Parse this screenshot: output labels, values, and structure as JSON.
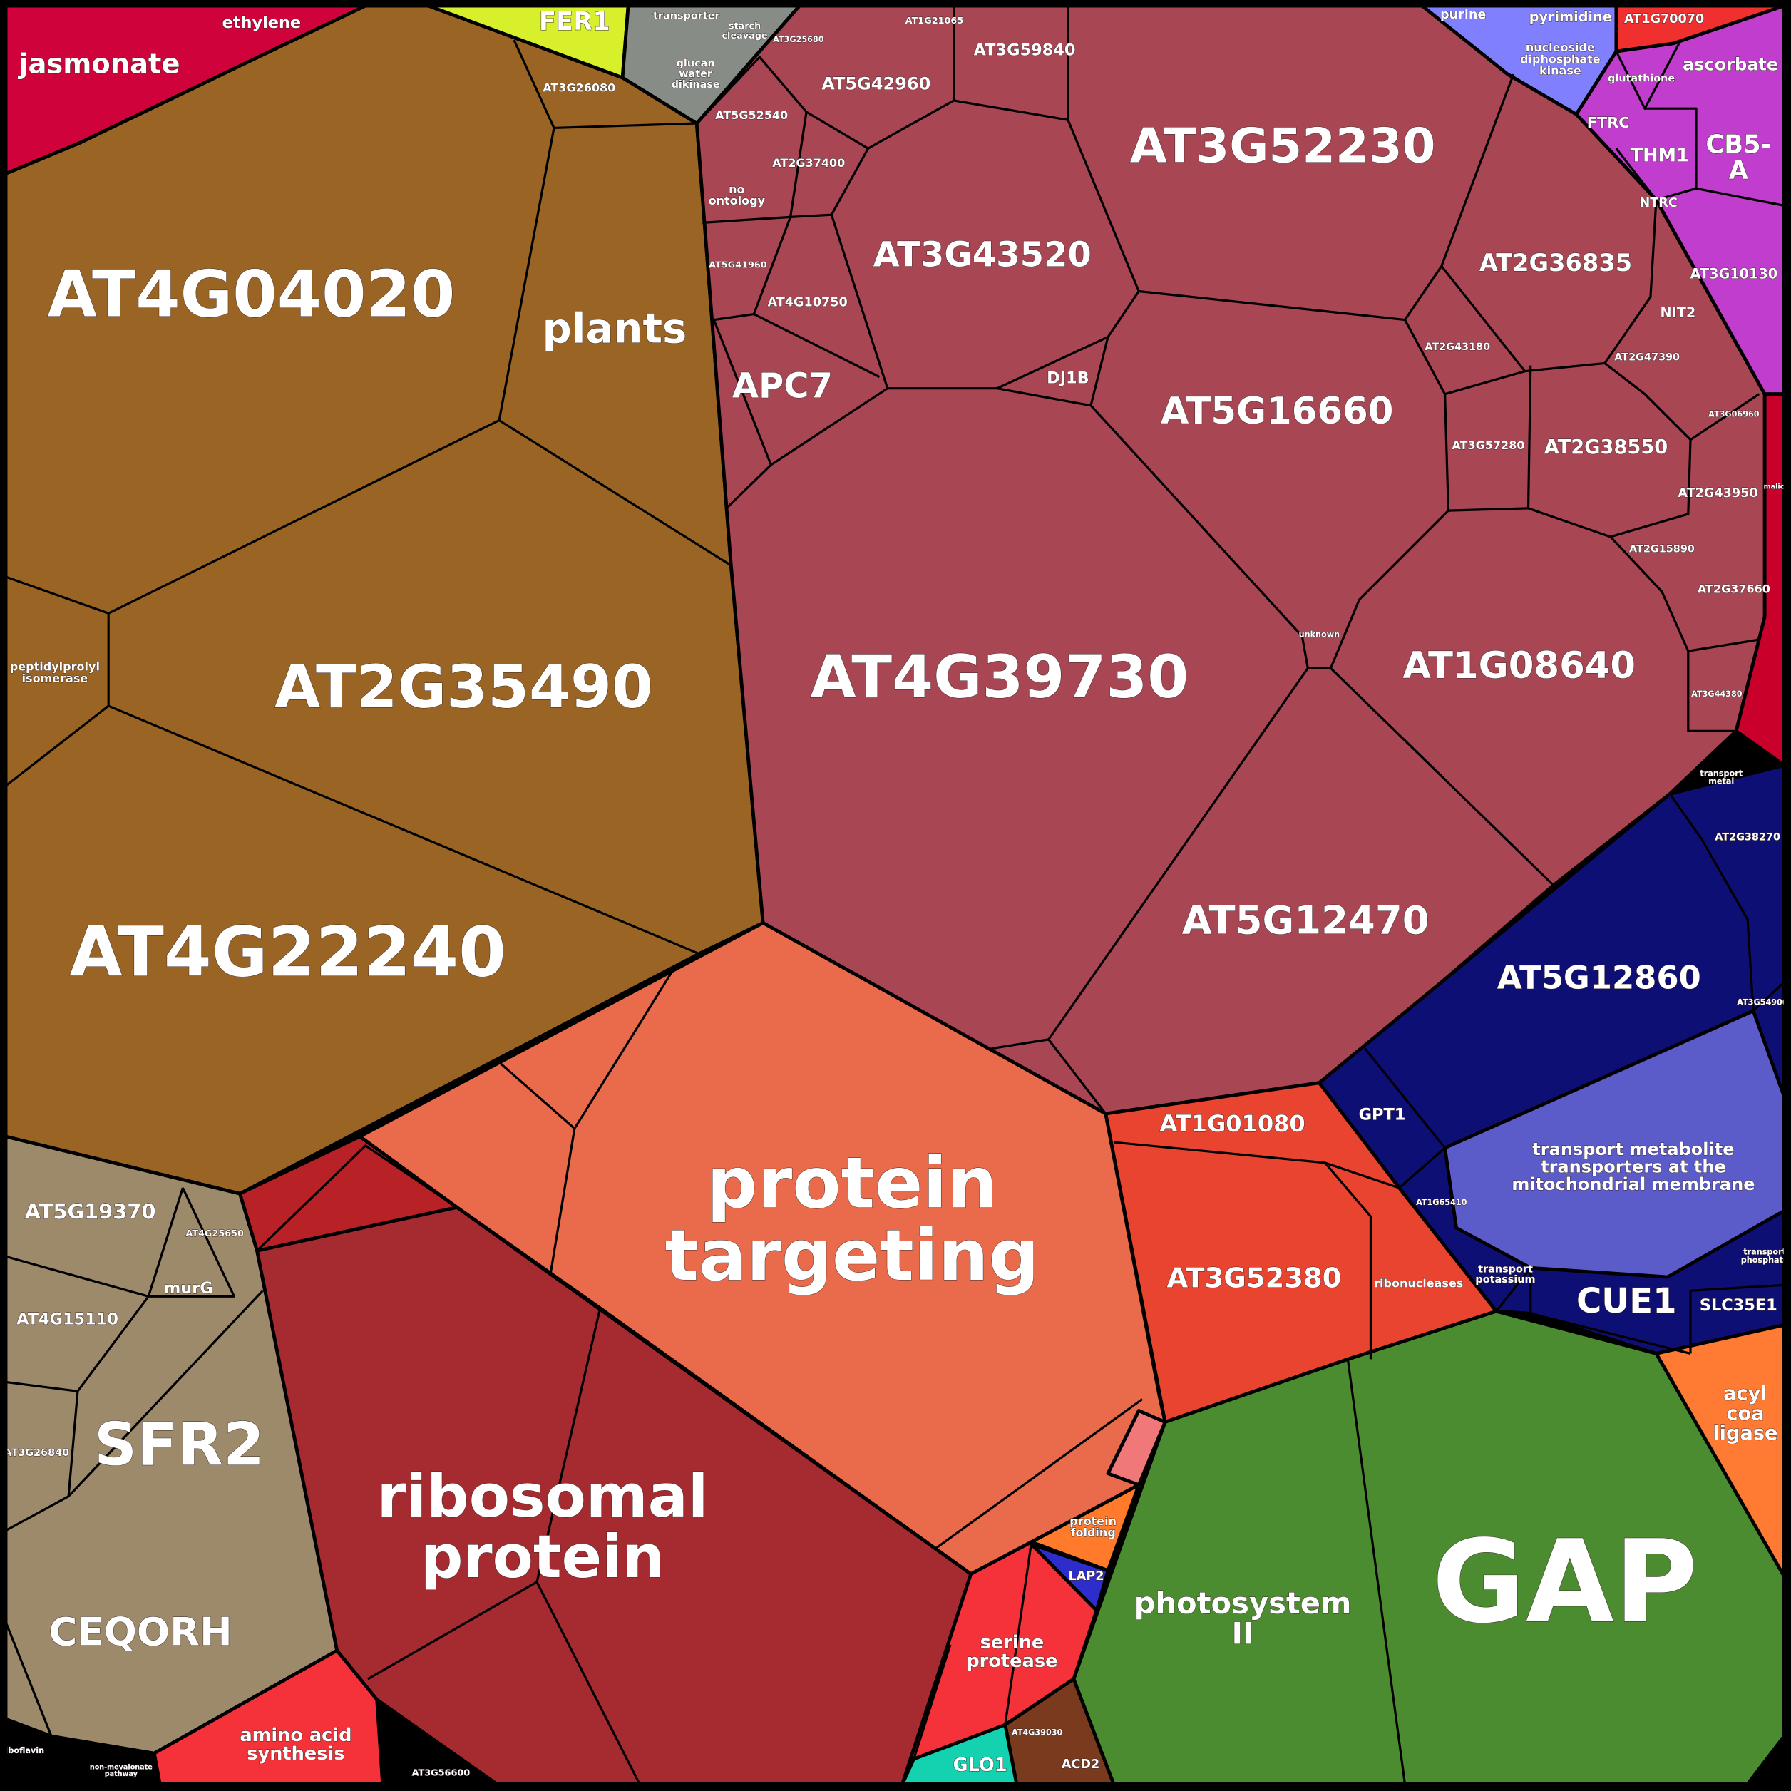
{
  "cells": [
    {
      "label": [
        "jasmonate"
      ]
    },
    {
      "label": [
        "ethylene"
      ]
    },
    {
      "label": [
        "FER1"
      ]
    },
    {
      "label": [
        "transporter"
      ]
    },
    {
      "label": [
        "starch",
        "cleavage"
      ]
    },
    {
      "label": [
        "glucan",
        "water",
        "dikinase"
      ]
    },
    {
      "label": [
        "AT3G26080"
      ]
    },
    {
      "label": [
        "AT3G25680"
      ]
    },
    {
      "label": [
        "AT1G21065"
      ]
    },
    {
      "label": [
        "AT3G59840"
      ]
    },
    {
      "label": [
        "AT5G42960"
      ]
    },
    {
      "label": [
        "AT5G52540"
      ]
    },
    {
      "label": [
        "AT2G37400"
      ]
    },
    {
      "label": [
        "no",
        "ontology"
      ]
    },
    {
      "label": [
        "AT5G41960"
      ]
    },
    {
      "label": [
        "AT4G10750"
      ]
    },
    {
      "label": [
        "AT4G04020"
      ]
    },
    {
      "label": [
        "plants"
      ]
    },
    {
      "label": [
        "AT3G52230"
      ]
    },
    {
      "label": [
        "AT3G43520"
      ]
    },
    {
      "label": [
        "AT2G36835"
      ]
    },
    {
      "label": [
        "AT2G43180"
      ]
    },
    {
      "label": [
        "DJ1B"
      ]
    },
    {
      "label": [
        "AT5G16660"
      ]
    },
    {
      "label": [
        "APC7"
      ]
    },
    {
      "label": [
        "AT3G57280"
      ]
    },
    {
      "label": [
        "AT2G38550"
      ]
    },
    {
      "label": [
        "NIT2"
      ]
    },
    {
      "label": [
        "AT2G47390"
      ]
    },
    {
      "label": [
        "AT3G10130"
      ]
    },
    {
      "label": [
        "AT3G06960"
      ]
    },
    {
      "label": [
        "AT2G43950"
      ]
    },
    {
      "label": [
        "AT2G15890"
      ]
    },
    {
      "label": [
        "AT2G37660"
      ]
    },
    {
      "label": [
        "unknown"
      ]
    },
    {
      "label": [
        "AT1G08640"
      ]
    },
    {
      "label": [
        "AT3G44380"
      ]
    },
    {
      "label": [
        "AT4G39730"
      ]
    },
    {
      "label": [
        "peptidylprolyl",
        "isomerase"
      ]
    },
    {
      "label": [
        "AT2G35490"
      ]
    },
    {
      "label": [
        "AT5G12470"
      ]
    },
    {
      "label": [
        "AT4G22240"
      ]
    },
    {
      "label": [
        "transport",
        "metal"
      ]
    },
    {
      "label": [
        "AT2G38270"
      ]
    },
    {
      "label": [
        "AT5G12860"
      ]
    },
    {
      "label": [
        "AT3G54900"
      ]
    },
    {
      "label": [
        "AT1G01080"
      ]
    },
    {
      "label": [
        "GPT1"
      ]
    },
    {
      "label": [
        "protein",
        "targeting"
      ]
    },
    {
      "label": [
        "AT5G19370"
      ]
    },
    {
      "label": [
        "AT4G25650"
      ]
    },
    {
      "label": [
        "murG"
      ]
    },
    {
      "label": [
        "AT4G15110"
      ]
    },
    {
      "label": [
        "transport metabolite",
        "transporters at the",
        "mitochondrial membrane"
      ]
    },
    {
      "label": [
        "AT1G65410"
      ]
    },
    {
      "label": [
        "AT3G52380"
      ]
    },
    {
      "label": [
        "ribonucleases"
      ]
    },
    {
      "label": [
        "transport",
        "potassium"
      ]
    },
    {
      "label": [
        "CUE1"
      ]
    },
    {
      "label": [
        "SLC35E1"
      ]
    },
    {
      "label": [
        "transport",
        "phosphate"
      ]
    },
    {
      "label": [
        "AT3G26840"
      ]
    },
    {
      "label": [
        "SFR2"
      ]
    },
    {
      "label": [
        "acyl",
        "coa",
        "ligase"
      ]
    },
    {
      "label": [
        "ribosomal",
        "protein"
      ]
    },
    {
      "label": [
        "protein",
        "folding"
      ]
    },
    {
      "label": [
        "LAP2"
      ]
    },
    {
      "label": [
        "photosystem",
        "II"
      ]
    },
    {
      "label": [
        "GAP"
      ]
    },
    {
      "label": [
        "CEQORH"
      ]
    },
    {
      "label": [
        "serine",
        "protease"
      ]
    },
    {
      "label": [
        "amino acid",
        "synthesis"
      ]
    },
    {
      "label": [
        "AT4G39030"
      ]
    },
    {
      "label": [
        "ACD2"
      ]
    },
    {
      "label": [
        "GLO1"
      ]
    },
    {
      "label": [
        "AT3G56600"
      ]
    },
    {
      "label": [
        "non-mevalonate",
        "pathway"
      ]
    },
    {
      "label": [
        "riboflavin"
      ]
    },
    {
      "label": [
        "purine"
      ]
    },
    {
      "label": [
        "pyrimidine"
      ]
    },
    {
      "label": [
        "nucleoside",
        "diphosphate",
        "kinase"
      ]
    },
    {
      "label": [
        "AT1G70070"
      ]
    },
    {
      "label": [
        "ascorbate"
      ]
    },
    {
      "label": [
        "glutathione"
      ]
    },
    {
      "label": [
        "FTRC"
      ]
    },
    {
      "label": [
        "THM1"
      ]
    },
    {
      "label": [
        "CB5-",
        "A"
      ]
    },
    {
      "label": [
        "NTRC"
      ]
    },
    {
      "label": [
        "malic"
      ]
    }
  ]
}
